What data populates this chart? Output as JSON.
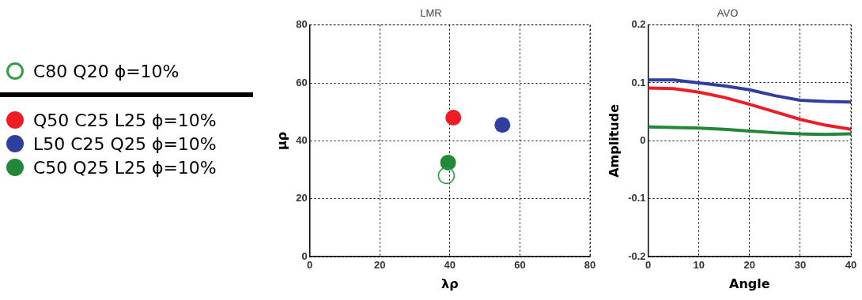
{
  "chart_data": [
    {
      "type": "scatter",
      "title": "LMR",
      "xlabel": "λρ",
      "ylabel": "μρ",
      "xlim": [
        0,
        80
      ],
      "xticks": [
        0,
        20,
        40,
        60,
        80
      ],
      "ylim": [
        0,
        80
      ],
      "yticks": [
        0,
        20,
        40,
        60,
        80
      ],
      "grid": true,
      "legend": "left",
      "marker": "circle",
      "series": [
        {
          "name": "C80 Q20 ϕ=10%",
          "color": "#2e9e44",
          "x": [
            39
          ],
          "values": [
            28
          ]
        },
        {
          "name": "Q50 C25 L25 ϕ=10%",
          "color": "#ee1c24",
          "x": [
            41
          ],
          "values": [
            48
          ]
        },
        {
          "name": "L50 C25 Q25 ϕ=10%",
          "color": "#2e3f9e",
          "x": [
            55
          ],
          "values": [
            45.5
          ]
        },
        {
          "name": "C50 Q25 L25 ϕ=10%",
          "color": "#23873a",
          "x": [
            39.5
          ],
          "values": [
            32.5
          ]
        }
      ]
    },
    {
      "type": "line",
      "title": "AVO",
      "xlabel": "Angle",
      "ylabel": "Amplitude",
      "xlim": [
        0,
        40
      ],
      "xticks": [
        0,
        10,
        20,
        30,
        40
      ],
      "ylim": [
        -0.2,
        0.2
      ],
      "yticks": [
        -0.2,
        -0.1,
        0,
        0.1,
        0.2
      ],
      "grid": true,
      "marker": "none",
      "line_style": "solid",
      "x": [
        0,
        5,
        10,
        15,
        20,
        25,
        30,
        35,
        40
      ],
      "series": [
        {
          "color": "#2e3f9e",
          "values": [
            0.105,
            0.105,
            0.1,
            0.095,
            0.088,
            0.078,
            0.07,
            0.068,
            0.067
          ]
        },
        {
          "color": "#ee1c24",
          "values": [
            0.091,
            0.09,
            0.084,
            0.075,
            0.063,
            0.05,
            0.037,
            0.027,
            0.02
          ]
        },
        {
          "color": "#23873a",
          "values": [
            0.024,
            0.023,
            0.022,
            0.02,
            0.017,
            0.014,
            0.012,
            0.011,
            0.012
          ]
        }
      ]
    }
  ]
}
